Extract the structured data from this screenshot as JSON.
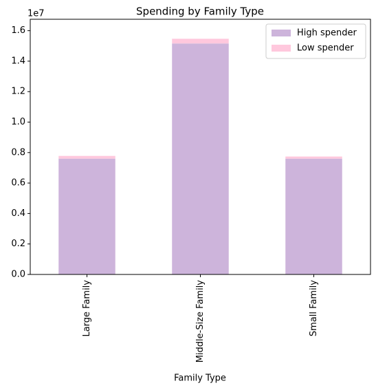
{
  "chart_data": {
    "type": "bar",
    "stacked": true,
    "title": "Spending by Family Type",
    "x_label": "Family Type",
    "y_offset_label": "1e7",
    "categories": [
      "Large Family",
      "Middle-Size Family",
      "Small Family"
    ],
    "series": [
      {
        "name": "High spender",
        "color": "#cdb4db",
        "values": [
          7600000,
          15160000,
          7600000
        ]
      },
      {
        "name": "Low spender",
        "color": "#ffc8dd",
        "values": [
          180000,
          310000,
          140000
        ]
      }
    ],
    "ylim": [
      0,
      16750000
    ],
    "yticks": [
      {
        "value": 0,
        "label": "0.0"
      },
      {
        "value": 2000000,
        "label": "0.2"
      },
      {
        "value": 4000000,
        "label": "0.4"
      },
      {
        "value": 6000000,
        "label": "0.6"
      },
      {
        "value": 8000000,
        "label": "0.8"
      },
      {
        "value": 10000000,
        "label": "1.0"
      },
      {
        "value": 12000000,
        "label": "1.2"
      },
      {
        "value": 14000000,
        "label": "1.4"
      },
      {
        "value": 16000000,
        "label": "1.6"
      }
    ],
    "legend": "upper right",
    "grid": false
  }
}
